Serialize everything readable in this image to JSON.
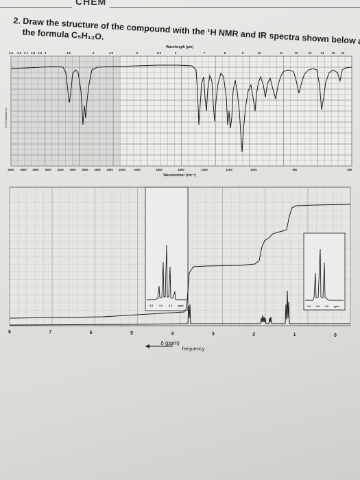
{
  "header": {
    "text": "CHEM"
  },
  "question": {
    "number": "2.",
    "line1": "Draw the structure of the compound with the ¹H NMR and IR spectra shown below and",
    "line2": "the formula C₅H₁₂O."
  },
  "ir": {
    "wavelength_label": "Wavelength (μm)",
    "wavelength_ticks": [
      "2.5",
      "2.6",
      "2.7",
      "2.8",
      "2.9",
      "3",
      "3.5",
      "4",
      "4.5",
      "5",
      "5.5",
      "6",
      "7",
      "8",
      "9",
      "10",
      "11",
      "12",
      "13",
      "14",
      "15",
      "16"
    ],
    "wavenumber_label": "Wavenumber (cm⁻¹)",
    "wavenumber_ticks": [
      "4000",
      "3800",
      "3600",
      "3400",
      "3200",
      "3000",
      "2800",
      "2600",
      "2400",
      "2200",
      "2000",
      "1800",
      "1600",
      "1400",
      "1200",
      "1000",
      "800",
      "600"
    ],
    "ylabel": "% Transmittance"
  },
  "nmr": {
    "xlabel": "δ (ppm)",
    "x_ticks": [
      "8",
      "7",
      "6",
      "5",
      "4",
      "3",
      "2",
      "1",
      "0"
    ],
    "inset_left_ticks": [
      "3.5",
      "3.4",
      "3.3",
      "ppm"
    ],
    "inset_right_ticks": [
      "1.0",
      "0.9",
      "0.8",
      "ppm"
    ],
    "frequency_label": "frequency"
  }
}
